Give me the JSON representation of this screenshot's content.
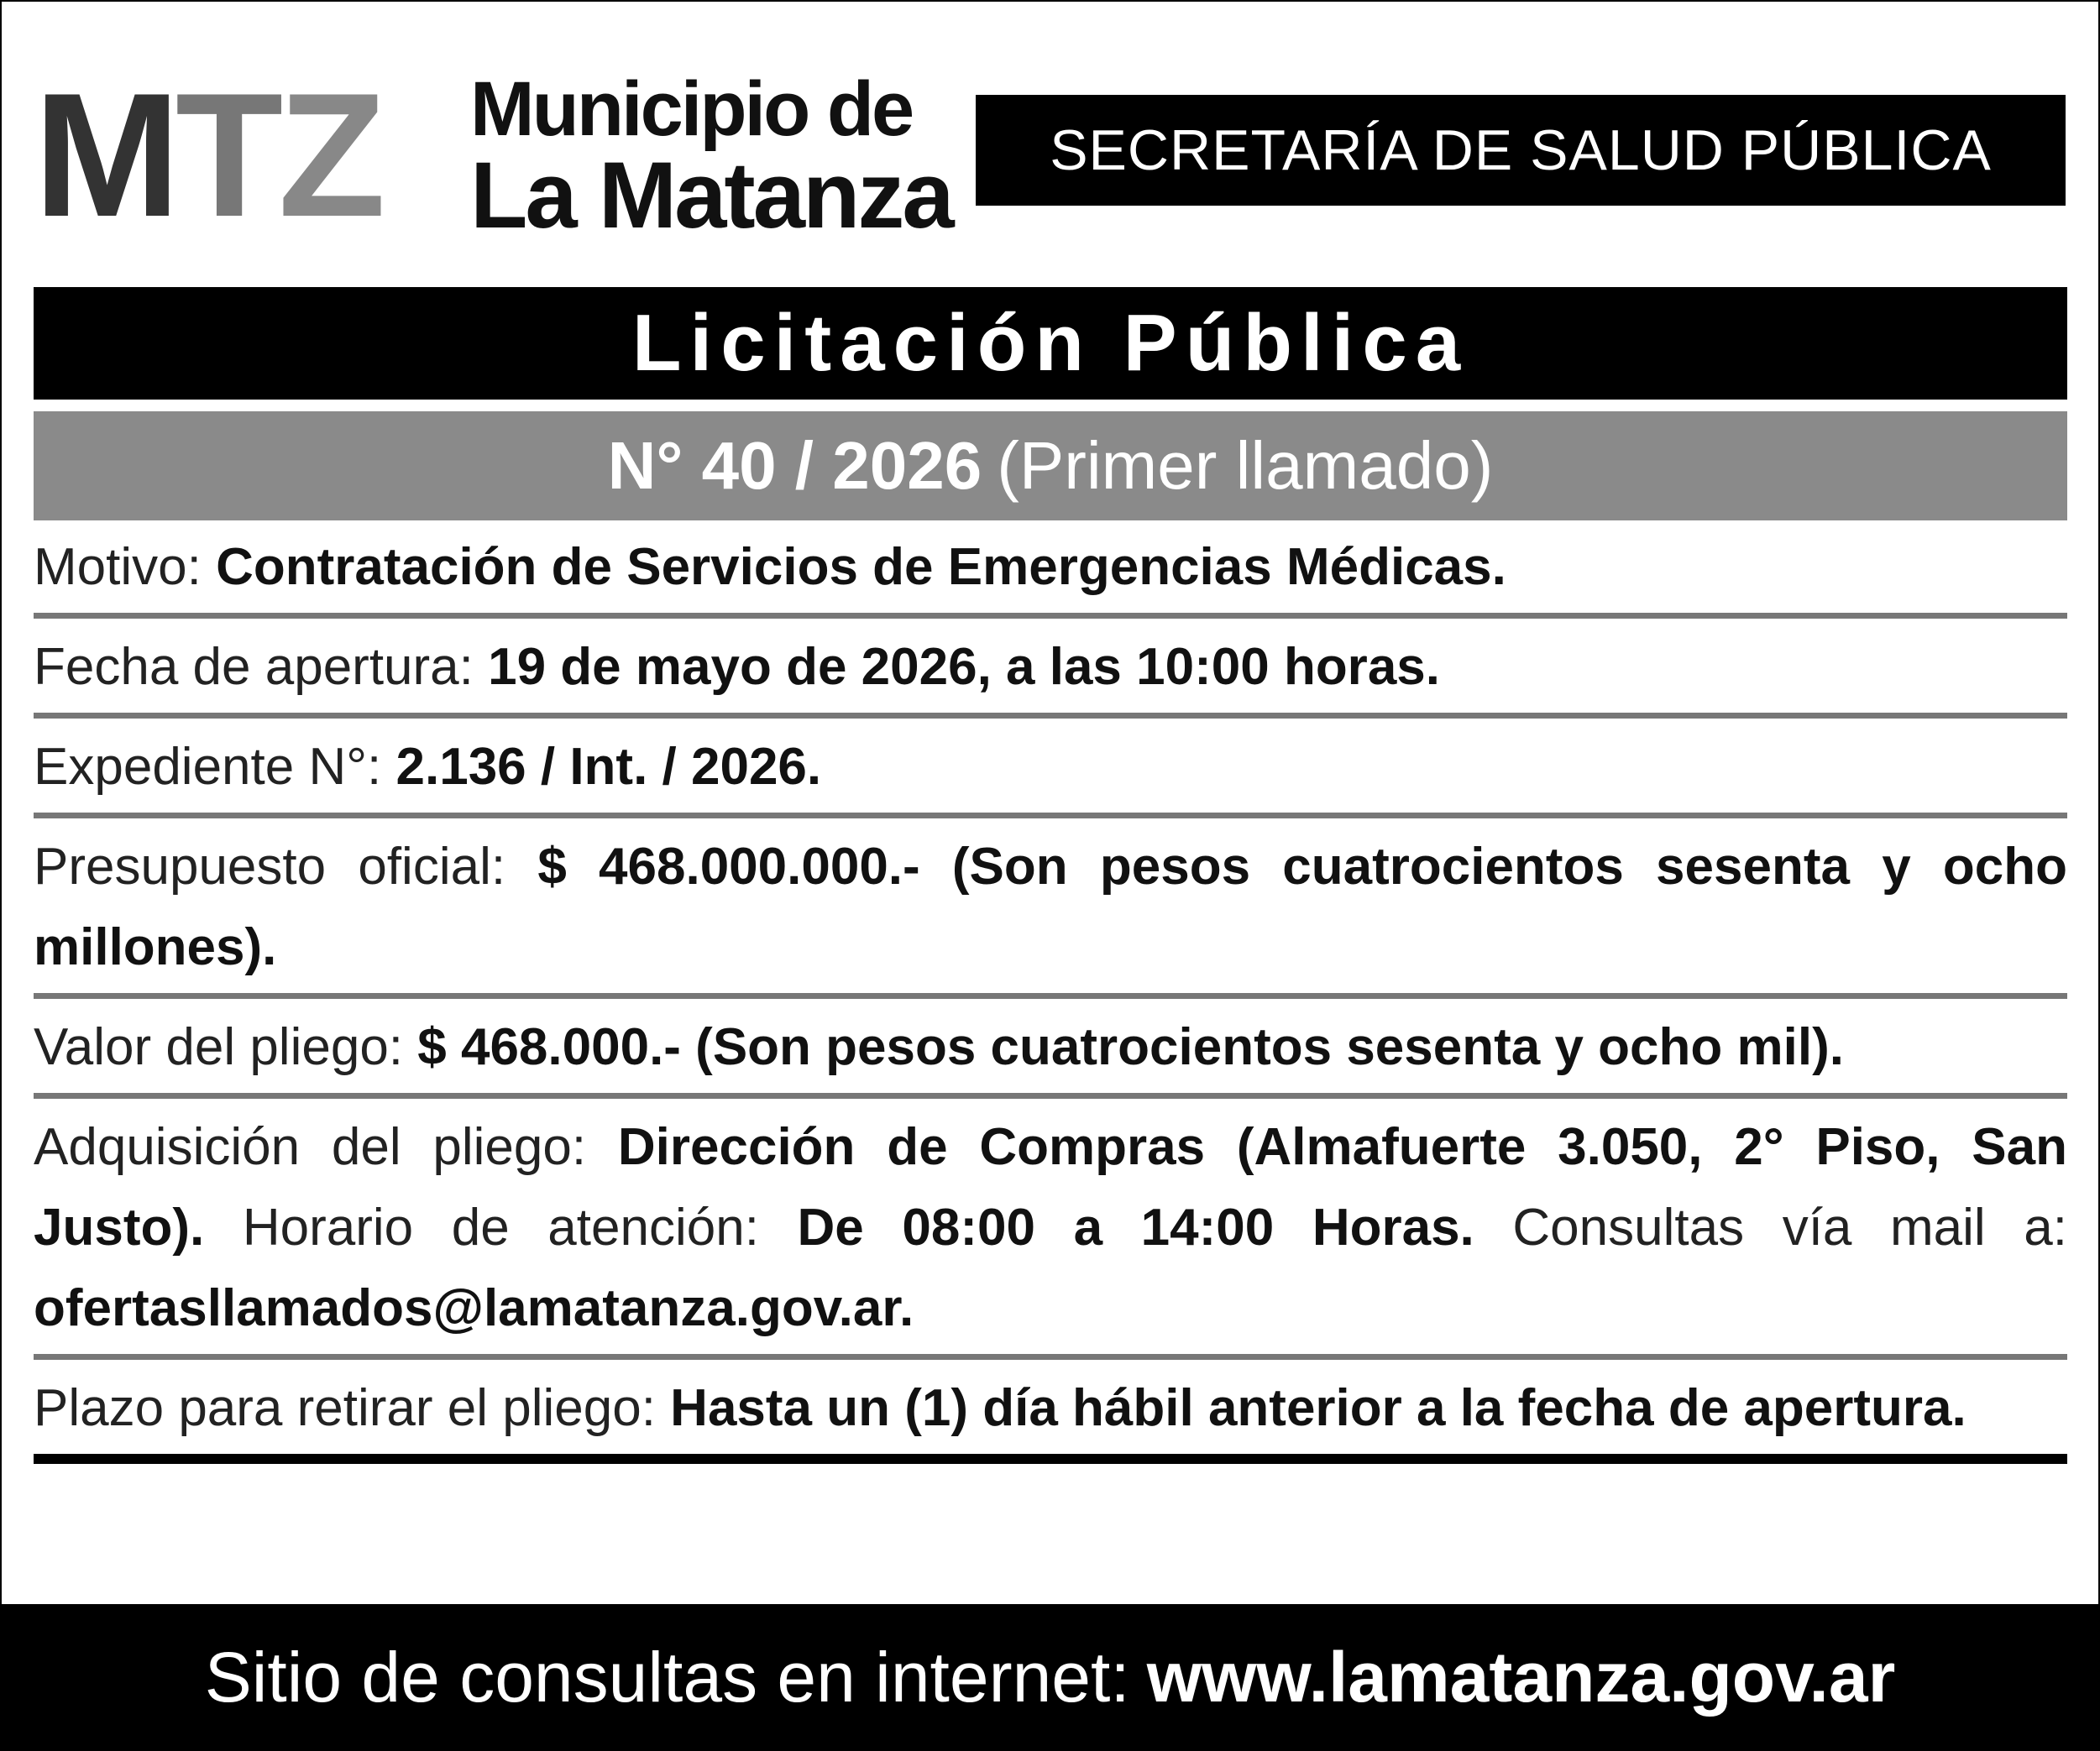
{
  "header": {
    "logo": {
      "letters": [
        "M",
        "T",
        "Z"
      ],
      "line1": "Municipio de",
      "line2": "La Matanza"
    },
    "department": "SECRETARÍA DE SALUD PÚBLICA"
  },
  "title": "Licitación Pública",
  "number": {
    "main": "N° 40 / 2026",
    "note": "(Primer llamado)"
  },
  "rows": [
    {
      "label": "Motivo: ",
      "value": "Contratación de Servicios de Emergencias Médicas."
    },
    {
      "label": "Fecha de apertura: ",
      "value": "19 de mayo de 2026, a las 10:00 horas."
    },
    {
      "label": "Expediente N°: ",
      "value": "2.136 / Int. / 2026."
    },
    {
      "label": "Presupuesto oficial: ",
      "value": "$ 468.000.000.- (Son pesos cuatrocientos sesenta y ocho millones)."
    },
    {
      "label": "Valor del pliego: ",
      "value": "$ 468.000.- (Son pesos cuatrocientos sesenta y ocho mil)."
    },
    {
      "label": "Adquisición del pliego: ",
      "value": "Dirección de Compras (Almafuerte 3.050, 2° Piso, San Justo).",
      "label2": " Horario de atención: ",
      "value2": "De 08:00 a 14:00 Horas.",
      "label3": " Consultas vía mail a: ",
      "value3": "ofertasllamados@lamatanza.gov.ar."
    },
    {
      "label": "Plazo para retirar el pliego: ",
      "value": "Hasta un (1) día hábil anterior a la fecha de apertura."
    }
  ],
  "footer": {
    "label": "Sitio de consultas en internet:",
    "url": "www.lamatanza.gov.ar"
  },
  "colors": {
    "black": "#000000",
    "gray_bar": "#8a8a8a",
    "separator": "#777777"
  }
}
